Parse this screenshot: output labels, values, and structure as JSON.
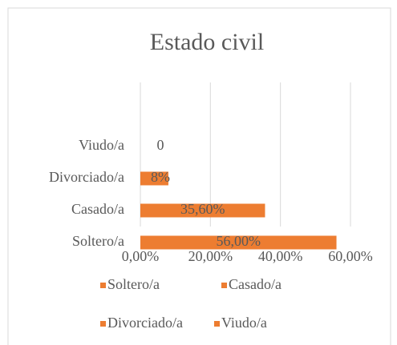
{
  "chart_data": {
    "type": "barh",
    "title": "Estado civil",
    "categories": [
      "Soltero/a",
      "Casado/a",
      "Divorciado/a",
      "Viudo/a"
    ],
    "values": [
      56,
      35.6,
      8,
      0
    ],
    "value_labels": [
      "56,00%",
      "35,60%",
      "8%",
      "0"
    ],
    "color": "#ed7d31",
    "xlim": [
      0,
      60
    ],
    "xticks": [
      {
        "value": 0,
        "label": "0,00%"
      },
      {
        "value": 20,
        "label": "20,00%"
      },
      {
        "value": 40,
        "label": "40,00%"
      },
      {
        "value": 60,
        "label": "60,00%"
      }
    ],
    "grid": true,
    "legend": "bottom"
  }
}
